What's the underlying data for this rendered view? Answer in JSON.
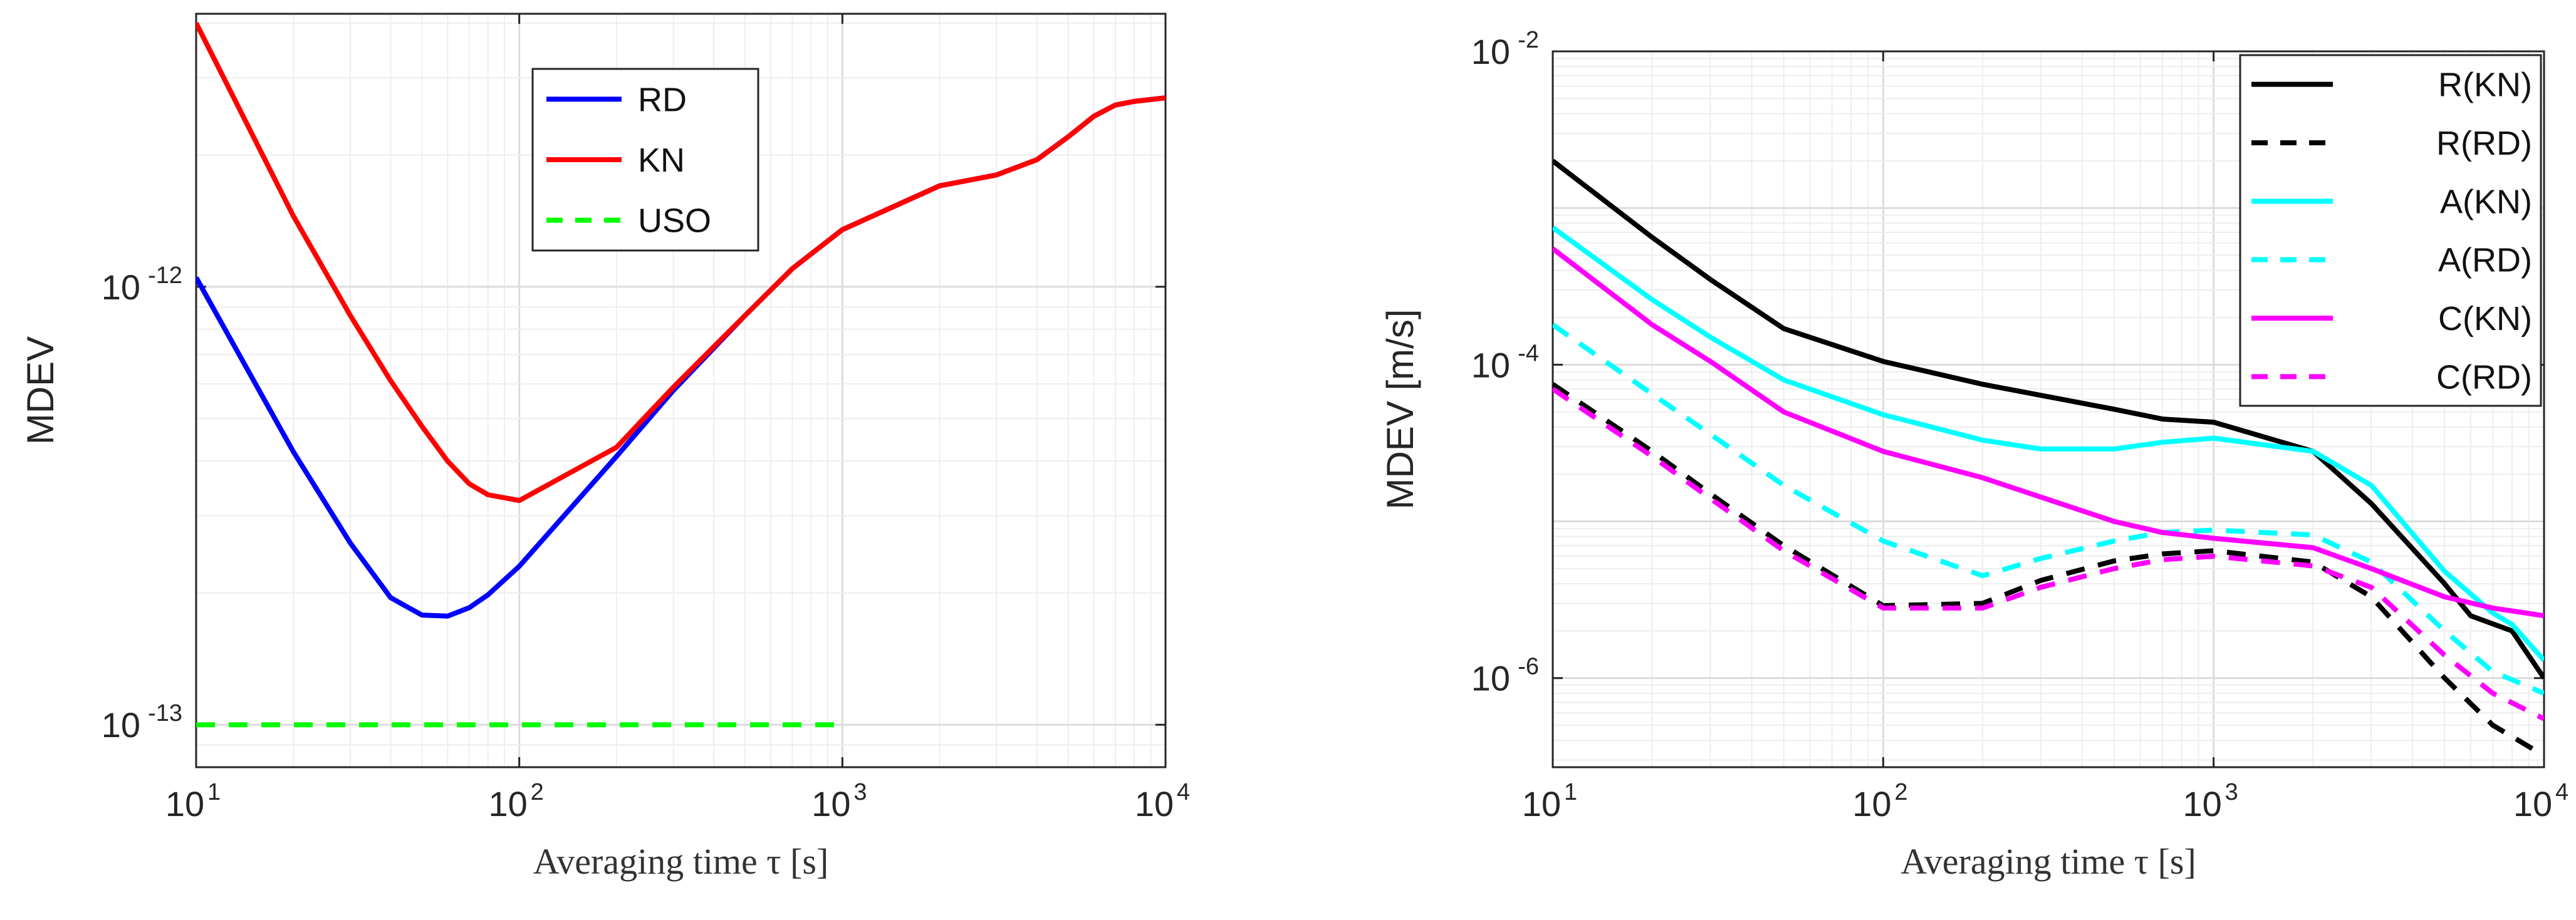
{
  "chart_data": [
    {
      "type": "line",
      "xscale": "log",
      "yscale": "log",
      "xlim": [
        10,
        10000
      ],
      "ylim": [
        8e-14,
        4.2e-12
      ],
      "xlabel": "Averaging time τ [s]",
      "ylabel": "MDEV",
      "xticks": [
        {
          "value": 10,
          "base": "10",
          "exp": "1"
        },
        {
          "value": 100,
          "base": "10",
          "exp": "2"
        },
        {
          "value": 1000,
          "base": "10",
          "exp": "3"
        },
        {
          "value": 10000,
          "base": "10",
          "exp": "4"
        }
      ],
      "yticks": [
        {
          "value": 1e-13,
          "base": "10",
          "exp": "-13"
        },
        {
          "value": 1e-12,
          "base": "10",
          "exp": "-12"
        }
      ],
      "grid": true,
      "legend": "top-center",
      "series": [
        {
          "name": "RD",
          "color": "#0000ff",
          "dash": "solid",
          "x": [
            10,
            20,
            30,
            40,
            50,
            60,
            70,
            80,
            100,
            200,
            300,
            500,
            700,
            1000,
            2000,
            3000,
            4000,
            5000,
            6000,
            7000,
            8000,
            10000
          ],
          "y": [
            1.05e-12,
            4.2e-13,
            2.6e-13,
            1.95e-13,
            1.78e-13,
            1.77e-13,
            1.85e-13,
            1.98e-13,
            2.3e-13,
            4.1e-13,
            5.8e-13,
            8.6e-13,
            1.1e-12,
            1.35e-12,
            1.7e-12,
            1.8e-12,
            1.95e-12,
            2.2e-12,
            2.45e-12,
            2.6e-12,
            2.65e-12,
            2.7e-12
          ]
        },
        {
          "name": "KN",
          "color": "#ff0000",
          "dash": "solid",
          "x": [
            10,
            20,
            30,
            40,
            50,
            60,
            70,
            80,
            100,
            200,
            300,
            500,
            700,
            1000,
            2000,
            3000,
            4000,
            5000,
            6000,
            7000,
            8000,
            10000
          ],
          "y": [
            4e-12,
            1.45e-12,
            8.6e-13,
            6.1e-13,
            4.8e-13,
            4e-13,
            3.55e-13,
            3.35e-13,
            3.25e-13,
            4.3e-13,
            5.9e-13,
            8.6e-13,
            1.1e-12,
            1.35e-12,
            1.7e-12,
            1.8e-12,
            1.95e-12,
            2.2e-12,
            2.45e-12,
            2.6e-12,
            2.65e-12,
            2.7e-12
          ]
        },
        {
          "name": "USO",
          "color": "#00ff00",
          "dash": "dashed",
          "x": [
            10,
            1000
          ],
          "y": [
            1e-13,
            1e-13
          ]
        }
      ]
    },
    {
      "type": "line",
      "xscale": "log",
      "yscale": "log",
      "xlim": [
        10,
        10000
      ],
      "ylim": [
        2.7e-07,
        0.01
      ],
      "xlabel": "Averaging time τ [s]",
      "ylabel": "MDEV [m/s]",
      "xticks": [
        {
          "value": 10,
          "base": "10",
          "exp": "1"
        },
        {
          "value": 100,
          "base": "10",
          "exp": "2"
        },
        {
          "value": 1000,
          "base": "10",
          "exp": "3"
        },
        {
          "value": 10000,
          "base": "10",
          "exp": "4"
        }
      ],
      "yticks": [
        {
          "value": 1e-06,
          "base": "10",
          "exp": "-6"
        },
        {
          "value": 0.0001,
          "base": "10",
          "exp": "-4"
        },
        {
          "value": 0.01,
          "base": "10",
          "exp": "-2"
        }
      ],
      "grid": true,
      "legend": "top-right",
      "series": [
        {
          "name": "R(KN)",
          "color": "#000000",
          "dash": "solid",
          "x": [
            10,
            20,
            30,
            50,
            100,
            200,
            500,
            700,
            1000,
            2000,
            3000,
            5000,
            6000,
            8000,
            10000
          ],
          "y": [
            0.002,
            0.00065,
            0.00035,
            0.00017,
            0.000105,
            7.5e-05,
            5.2e-05,
            4.5e-05,
            4.3e-05,
            2.8e-05,
            1.3e-05,
            4e-06,
            2.5e-06,
            2e-06,
            1e-06
          ]
        },
        {
          "name": "R(RD)",
          "color": "#000000",
          "dash": "dashed",
          "x": [
            10,
            20,
            30,
            50,
            100,
            200,
            300,
            500,
            700,
            1000,
            2000,
            3000,
            5000,
            7000,
            10000
          ],
          "y": [
            7.5e-05,
            2.8e-05,
            1.5e-05,
            7e-06,
            2.9e-06,
            3e-06,
            4.2e-06,
            5.6e-06,
            6.2e-06,
            6.5e-06,
            5.5e-06,
            3.3e-06,
            1e-06,
            5e-07,
            3.2e-07
          ]
        },
        {
          "name": "A(KN)",
          "color": "#00ffff",
          "dash": "solid",
          "x": [
            10,
            20,
            30,
            50,
            100,
            200,
            300,
            500,
            700,
            1000,
            2000,
            3000,
            5000,
            7000,
            8000,
            10000
          ],
          "y": [
            0.00075,
            0.00026,
            0.00015,
            8e-05,
            4.8e-05,
            3.3e-05,
            2.9e-05,
            2.9e-05,
            3.2e-05,
            3.4e-05,
            2.8e-05,
            1.7e-05,
            4.8e-06,
            2.6e-06,
            2.2e-06,
            1.3e-06
          ]
        },
        {
          "name": "A(RD)",
          "color": "#00ffff",
          "dash": "dashed",
          "x": [
            10,
            20,
            30,
            50,
            100,
            200,
            300,
            500,
            700,
            1000,
            2000,
            3000,
            5000,
            7000,
            10000
          ],
          "y": [
            0.00018,
            6.5e-05,
            3.6e-05,
            1.7e-05,
            7.5e-06,
            4.5e-06,
            5.8e-06,
            7.5e-06,
            8.5e-06,
            8.8e-06,
            8.2e-06,
            5.5e-06,
            2e-06,
            1.1e-06,
            8e-07
          ]
        },
        {
          "name": "C(KN)",
          "color": "#ff00ff",
          "dash": "solid",
          "x": [
            10,
            20,
            30,
            50,
            100,
            200,
            500,
            700,
            1000,
            2000,
            3000,
            5000,
            7000,
            10000
          ],
          "y": [
            0.00055,
            0.00018,
            0.000105,
            5e-05,
            2.8e-05,
            1.9e-05,
            1e-05,
            8.5e-06,
            7.8e-06,
            6.8e-06,
            5e-06,
            3.3e-06,
            2.8e-06,
            2.5e-06
          ]
        },
        {
          "name": "C(RD)",
          "color": "#ff00ff",
          "dash": "dashed",
          "x": [
            10,
            20,
            30,
            50,
            100,
            200,
            300,
            500,
            700,
            1000,
            2000,
            3000,
            5000,
            7000,
            10000
          ],
          "y": [
            7e-05,
            2.6e-05,
            1.4e-05,
            6.5e-06,
            2.8e-06,
            2.8e-06,
            3.8e-06,
            5e-06,
            5.7e-06,
            6e-06,
            5.2e-06,
            3.8e-06,
            1.4e-06,
            8e-07,
            5.5e-07
          ]
        }
      ]
    }
  ]
}
